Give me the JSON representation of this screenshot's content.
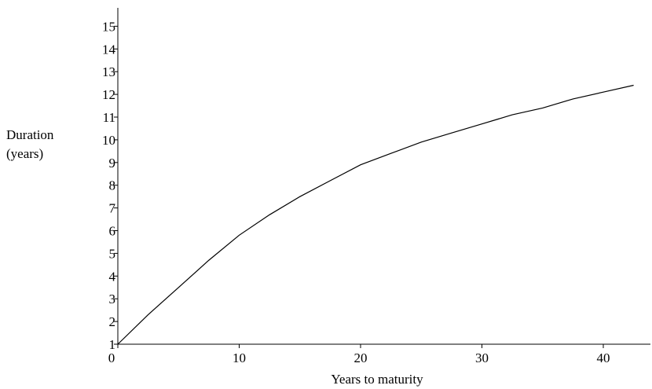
{
  "chart_data": {
    "type": "line",
    "title": "",
    "xlabel": "Years to maturity",
    "ylabel_lines": [
      "Duration",
      "(years)"
    ],
    "xlim": [
      0,
      44
    ],
    "ylim": [
      1,
      15
    ],
    "x_ticks": [
      0,
      10,
      20,
      30,
      40
    ],
    "x_tick_labels": [
      "0",
      "10",
      "20",
      "30",
      "40"
    ],
    "y_ticks": [
      1,
      2,
      3,
      4,
      5,
      6,
      7,
      8,
      9,
      10,
      11,
      12,
      13,
      14,
      15
    ],
    "y_tick_labels": [
      "1",
      "2",
      "3",
      "4",
      "5",
      "6",
      "7",
      "8",
      "9",
      "10",
      "11",
      "12",
      "13",
      "14",
      "15"
    ],
    "grid": false,
    "legend": "none",
    "series": [
      {
        "x": [
          0,
          2.5,
          5,
          7.5,
          10,
          12.5,
          15,
          17.5,
          20,
          22.5,
          25,
          27.5,
          30,
          32.5,
          35,
          37.5,
          40,
          42.5
        ],
        "y": [
          1.0,
          2.3,
          3.5,
          4.7,
          5.8,
          6.7,
          7.5,
          8.2,
          8.9,
          9.4,
          9.9,
          10.3,
          10.7,
          11.1,
          11.4,
          11.8,
          12.1,
          12.4
        ]
      }
    ]
  }
}
